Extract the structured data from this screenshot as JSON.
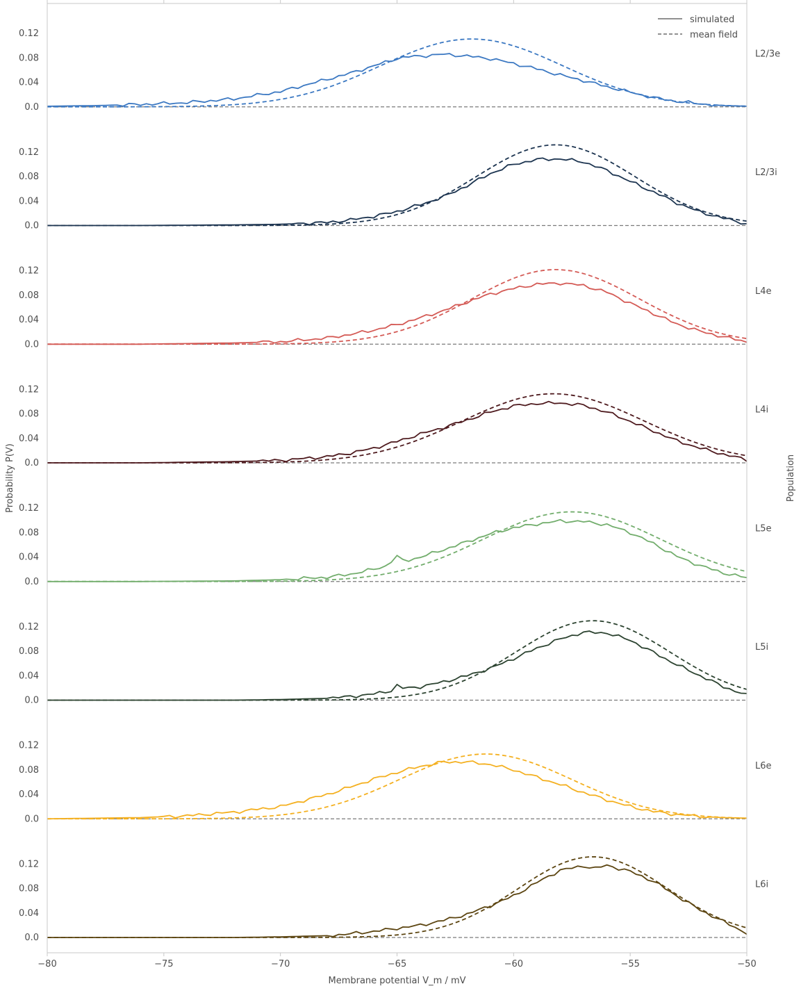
{
  "chart_data": {
    "type": "line",
    "xlabel": "Membrane potential V_m / mV",
    "ylabel": "Probability P(V)",
    "right_label": "Population",
    "xlim": [
      -80,
      -50
    ],
    "xticks": [
      -80,
      -75,
      -70,
      -65,
      -60,
      -55,
      -50
    ],
    "ylim": [
      0,
      0.16
    ],
    "yticks": [
      0.0,
      0.04,
      0.08,
      0.12
    ],
    "ytick_labels": [
      "0.0",
      "0.04",
      "0.08",
      "0.12"
    ],
    "grid": false,
    "legend": {
      "placement": "top-right",
      "entries": [
        {
          "label": "simulated",
          "style": "solid"
        },
        {
          "label": "mean field",
          "style": "dashed"
        }
      ]
    },
    "panels": [
      {
        "population": "L2/3e",
        "color": "#3b78c2",
        "simulated": {
          "x": [
            -80,
            -78,
            -76,
            -74,
            -72,
            -70,
            -68,
            -67,
            -66,
            -65,
            -64.5,
            -64,
            -63,
            -62,
            -61,
            -60,
            -59,
            -58,
            -57,
            -56,
            -55,
            -54,
            -53,
            -52,
            -51,
            -50
          ],
          "y": [
            0.001,
            0.002,
            0.004,
            0.007,
            0.013,
            0.025,
            0.045,
            0.055,
            0.067,
            0.079,
            0.082,
            0.083,
            0.086,
            0.083,
            0.079,
            0.071,
            0.062,
            0.052,
            0.043,
            0.033,
            0.024,
            0.015,
            0.009,
            0.005,
            0.002,
            0.001
          ]
        },
        "mean_field": {
          "mu": -61.8,
          "sigma": 3.9,
          "peak": 0.111
        }
      },
      {
        "population": "L2/3i",
        "color": "#1c3450",
        "simulated": {
          "x": [
            -80,
            -76,
            -72,
            -70,
            -68,
            -67,
            -66,
            -65,
            -64,
            -63,
            -62,
            -61,
            -60,
            -59,
            -58,
            -57,
            -56,
            -55,
            -54,
            -53,
            -52,
            -51,
            -50
          ],
          "y": [
            0.0,
            0.0,
            0.001,
            0.002,
            0.005,
            0.009,
            0.015,
            0.023,
            0.034,
            0.047,
            0.065,
            0.085,
            0.1,
            0.108,
            0.109,
            0.104,
            0.09,
            0.072,
            0.055,
            0.037,
            0.022,
            0.012,
            0.003
          ]
        },
        "mean_field": {
          "mu": -58.2,
          "sigma": 3.4,
          "peak": 0.132
        }
      },
      {
        "population": "L4e",
        "color": "#d45a55",
        "simulated": {
          "x": [
            -80,
            -76,
            -72,
            -70,
            -68,
            -67,
            -66,
            -65,
            -64,
            -63,
            -62,
            -61,
            -60,
            -59,
            -58,
            -57,
            -56,
            -55,
            -54,
            -53,
            -52,
            -51,
            -50
          ],
          "y": [
            0.0,
            0.0,
            0.002,
            0.004,
            0.01,
            0.016,
            0.023,
            0.032,
            0.043,
            0.055,
            0.069,
            0.082,
            0.091,
            0.098,
            0.1,
            0.096,
            0.085,
            0.067,
            0.05,
            0.033,
            0.021,
            0.012,
            0.004
          ]
        },
        "mean_field": {
          "mu": -58.2,
          "sigma": 3.6,
          "peak": 0.122
        }
      },
      {
        "population": "L4i",
        "color": "#4e1a1e",
        "simulated": {
          "x": [
            -80,
            -76,
            -72,
            -70,
            -68,
            -67,
            -66,
            -65,
            -64,
            -63,
            -62,
            -61,
            -60,
            -59,
            -58,
            -57,
            -56,
            -55,
            -54,
            -53,
            -52,
            -51,
            -50
          ],
          "y": [
            0.0,
            0.0,
            0.002,
            0.004,
            0.01,
            0.016,
            0.024,
            0.035,
            0.047,
            0.058,
            0.07,
            0.083,
            0.093,
            0.097,
            0.098,
            0.094,
            0.083,
            0.068,
            0.052,
            0.036,
            0.024,
            0.014,
            0.005
          ]
        },
        "mean_field": {
          "mu": -58.3,
          "sigma": 3.9,
          "peak": 0.113
        }
      },
      {
        "population": "L5e",
        "color": "#72ad6c",
        "simulated": {
          "x": [
            -80,
            -76,
            -72,
            -70,
            -68,
            -67,
            -66,
            -65.5,
            -65,
            -64.7,
            -64,
            -63,
            -62,
            -61,
            -60,
            -59,
            -58,
            -57,
            -56,
            -55,
            -54,
            -53,
            -52,
            -51,
            -50
          ],
          "y": [
            0.0,
            0.0,
            0.001,
            0.003,
            0.007,
            0.012,
            0.02,
            0.025,
            0.041,
            0.033,
            0.04,
            0.052,
            0.065,
            0.078,
            0.088,
            0.094,
            0.099,
            0.098,
            0.093,
            0.08,
            0.062,
            0.041,
            0.026,
            0.014,
            0.006
          ]
        },
        "mean_field": {
          "mu": -57.5,
          "sigma": 3.8,
          "peak": 0.114
        }
      },
      {
        "population": "L5i",
        "color": "#2c4330",
        "simulated": {
          "x": [
            -80,
            -76,
            -72,
            -70,
            -68,
            -67,
            -66,
            -65.2,
            -65,
            -64.7,
            -64,
            -63,
            -62,
            -61,
            -60,
            -59,
            -58,
            -57,
            -56,
            -55,
            -54,
            -53,
            -52,
            -51,
            -50
          ],
          "y": [
            0.0,
            0.0,
            0.0,
            0.001,
            0.003,
            0.006,
            0.01,
            0.016,
            0.024,
            0.019,
            0.022,
            0.03,
            0.04,
            0.052,
            0.068,
            0.085,
            0.1,
            0.111,
            0.11,
            0.098,
            0.078,
            0.058,
            0.04,
            0.022,
            0.008
          ]
        },
        "mean_field": {
          "mu": -56.6,
          "sigma": 3.3,
          "peak": 0.13
        }
      },
      {
        "population": "L6e",
        "color": "#f4b020",
        "simulated": {
          "x": [
            -80,
            -78,
            -76,
            -74,
            -72,
            -70,
            -69,
            -68,
            -67,
            -66,
            -65,
            -64,
            -63,
            -62,
            -61,
            -60,
            -59,
            -58,
            -57,
            -56,
            -55,
            -54,
            -53,
            -52,
            -51,
            -50
          ],
          "y": [
            0.0,
            0.001,
            0.002,
            0.005,
            0.011,
            0.02,
            0.03,
            0.04,
            0.052,
            0.065,
            0.076,
            0.086,
            0.093,
            0.093,
            0.089,
            0.08,
            0.068,
            0.056,
            0.043,
            0.031,
            0.02,
            0.012,
            0.007,
            0.004,
            0.002,
            0.001
          ]
        },
        "mean_field": {
          "mu": -61.2,
          "sigma": 3.7,
          "peak": 0.106
        }
      },
      {
        "population": "L6i",
        "color": "#5c4511",
        "simulated": {
          "x": [
            -80,
            -76,
            -72,
            -70,
            -68,
            -67,
            -66,
            -65,
            -64,
            -63,
            -62,
            -61,
            -60,
            -59,
            -58,
            -57,
            -56.5,
            -56,
            -55,
            -54,
            -53,
            -52,
            -51,
            -50
          ],
          "y": [
            0.0,
            0.0,
            0.0,
            0.001,
            0.003,
            0.006,
            0.01,
            0.015,
            0.02,
            0.028,
            0.038,
            0.052,
            0.068,
            0.09,
            0.11,
            0.117,
            0.113,
            0.118,
            0.108,
            0.092,
            0.068,
            0.045,
            0.026,
            0.007
          ]
        },
        "mean_field": {
          "mu": -56.6,
          "sigma": 3.2,
          "peak": 0.132
        }
      }
    ]
  }
}
